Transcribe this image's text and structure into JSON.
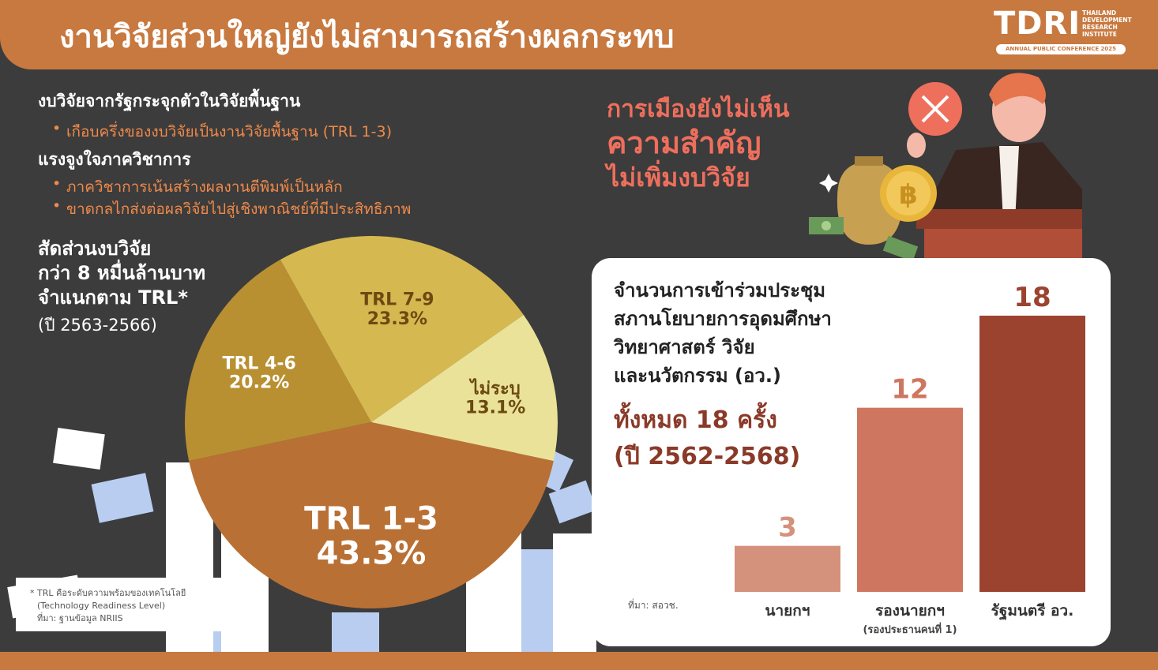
{
  "header": {
    "title": "งานวิจัยส่วนใหญ่ยังไม่สามารถสร้างผลกระทบ",
    "logo_main": "TDRI",
    "logo_sub": "THAILAND DEVELOPMENT RESEARCH INSTITUTE",
    "logo_conference": "ANNUAL PUBLIC CONFERENCE 2025"
  },
  "sections": [
    {
      "heading": "งบวิจัยจากรัฐกระจุกตัวในวิจัยพื้นฐาน",
      "bullets": [
        "เกือบครึ่งของงบวิจัยเป็นงานวิจัยพื้นฐาน (TRL 1-3)"
      ]
    },
    {
      "heading": "แรงจูงใจภาควิชาการ",
      "bullets": [
        "ภาควิชาการเน้นสร้างผลงานตีพิมพ์เป็นหลัก",
        "ขาดกลไกส่งต่อผลวิจัยไปสู่เชิงพาณิชย์ที่มีประสิทธิภาพ"
      ]
    }
  ],
  "pie": {
    "title_lines": [
      "สัดส่วนงบวิจัย",
      "กว่า 8 หมื่นล้านบาท",
      "จำแนกตาม TRL*"
    ],
    "subtitle": "(ปี 2563-2566)"
  },
  "footnote": {
    "lines": [
      "* TRL คือระดับความพร้อมของเทคโนโลยี",
      "(Technology Readiness Level)",
      "ที่มา: ฐานข้อมูล NRIIS"
    ]
  },
  "politics": {
    "line1": "การเมืองยังไม่เห็น",
    "line2": "ความสำคัญ",
    "line3": "ไม่เพิ่มงบวิจัย"
  },
  "bar_card": {
    "title_lines": [
      "จำนวนการเข้าร่วมประชุม",
      "สภานโยบายการอุดมศึกษา",
      "วิทยาศาสตร์ วิจัย",
      "และนวัตกรรม (อว.)"
    ],
    "total_lines": [
      "ทั้งหมด 18 ครั้ง",
      "(ปี 2562-2568)"
    ],
    "source": "ที่มา: สอวช.",
    "sublabels": [
      "",
      "(รองประธานคนที่ 1)",
      ""
    ]
  },
  "colors": {
    "header": "#c8793f",
    "background": "#3c3c3c",
    "accent_orange": "#f08a4b",
    "accent_red": "#ef6f5d",
    "total_text": "#8a3a28"
  },
  "chart_data": [
    {
      "type": "pie",
      "slices": [
        {
          "label": "TRL 1-3",
          "value": 43.3,
          "display": "43.3%",
          "color": "#b97034"
        },
        {
          "label": "TRL 4-6",
          "value": 20.2,
          "display": "20.2%",
          "color": "#b89032"
        },
        {
          "label": "TRL 7-9",
          "value": 23.3,
          "display": "23.3%",
          "color": "#d6b850"
        },
        {
          "label": "ไม่ระบุ",
          "value": 13.1,
          "display": "13.1%",
          "color": "#ebe29a"
        }
      ]
    },
    {
      "type": "bar",
      "categories": [
        "นายกฯ",
        "รองนายกฯ",
        "รัฐมนตรี อว."
      ],
      "values": [
        3,
        12,
        18
      ],
      "colors": [
        "#d4917c",
        "#cf7660",
        "#9c4330"
      ],
      "ylim": [
        0,
        18
      ]
    }
  ]
}
